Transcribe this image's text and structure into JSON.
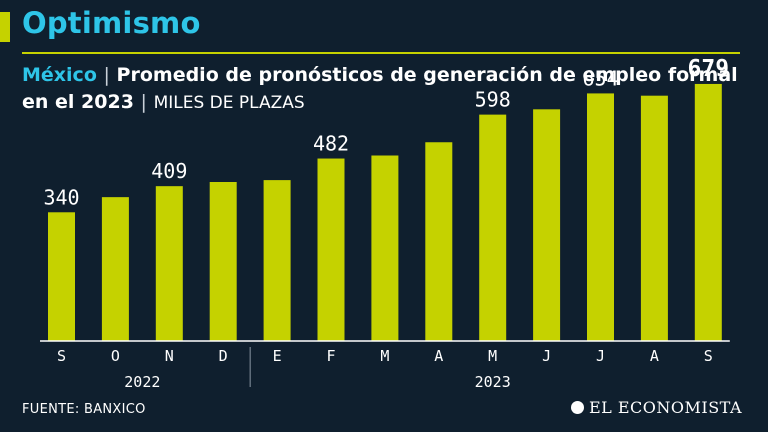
{
  "header": {
    "title": "Optimismo",
    "country": "México",
    "separator": "|",
    "subtitle": "Promedio de pronósticos de generación de empleo formal en el 2023",
    "units": "MILES DE PLAZAS"
  },
  "chart_data": {
    "type": "bar",
    "categories": [
      "S",
      "O",
      "N",
      "D",
      "E",
      "F",
      "M",
      "A",
      "M",
      "J",
      "J",
      "A",
      "S"
    ],
    "values": [
      340,
      380,
      409,
      420,
      425,
      482,
      490,
      525,
      598,
      612,
      654,
      648,
      679
    ],
    "data_labels": [
      "340",
      "",
      "409",
      "",
      "",
      "482",
      "",
      "",
      "598",
      "",
      "654",
      "",
      "679"
    ],
    "year_groups": [
      {
        "label": "2022",
        "start": 0,
        "end": 3
      },
      {
        "label": "2023",
        "start": 4,
        "end": 12
      }
    ],
    "ylim": [
      0,
      700
    ],
    "colors": {
      "bar": "#c5d200",
      "label": "#ffffff",
      "axis": "#ffffff"
    }
  },
  "footer": {
    "source": "FUENTE: BANXICO",
    "brand": "EL ECONOMISTA"
  }
}
